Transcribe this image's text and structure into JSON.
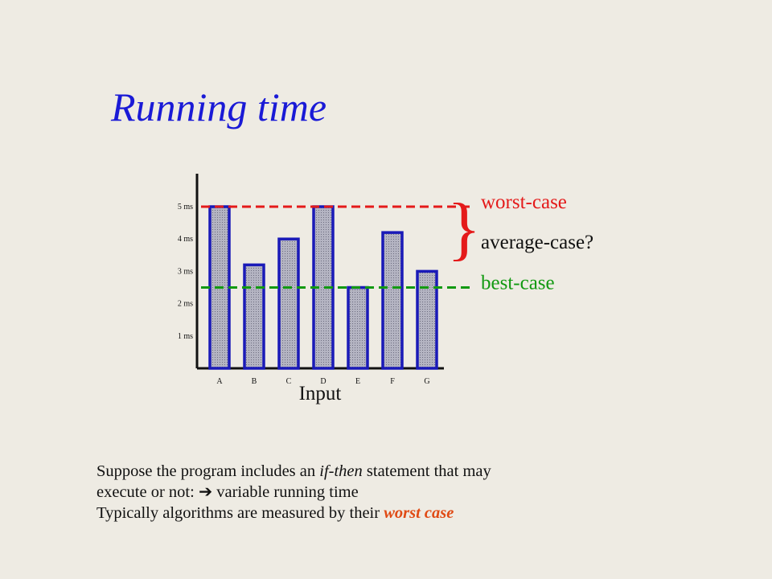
{
  "slide": {
    "title": "Running time",
    "caption": {
      "line1_pre": "Suppose the program includes an ",
      "line1_em": "if-then",
      "line1_post": " statement that may",
      "line2_pre": "execute or not: ",
      "line2_arrow": "➔",
      "line2_post": " variable running time",
      "line3_pre": "Typically algorithms are measured by their ",
      "line3_em": "worst case"
    }
  },
  "chart_data": {
    "type": "bar",
    "categories": [
      "A",
      "B",
      "C",
      "D",
      "E",
      "F",
      "G"
    ],
    "values": [
      5.0,
      3.2,
      4.0,
      5.0,
      2.5,
      4.2,
      3.0
    ],
    "xlabel": "Input",
    "ylabel": "",
    "ylim": [
      0,
      5.5
    ],
    "yticks": [
      {
        "value": 1,
        "label": "1 ms"
      },
      {
        "value": 2,
        "label": "2 ms"
      },
      {
        "value": 3,
        "label": "3 ms"
      },
      {
        "value": 4,
        "label": "4 ms"
      },
      {
        "value": 5,
        "label": "5 ms"
      }
    ],
    "grid": false,
    "reference_lines": [
      {
        "name": "worst-case",
        "value": 5.0,
        "color": "#e41a1a"
      },
      {
        "name": "best-case",
        "value": 2.5,
        "color": "#119911"
      }
    ],
    "bracket_label": "average-case?",
    "bar_fill": "#a9a9b8",
    "bar_border": "#1a1ab8"
  }
}
